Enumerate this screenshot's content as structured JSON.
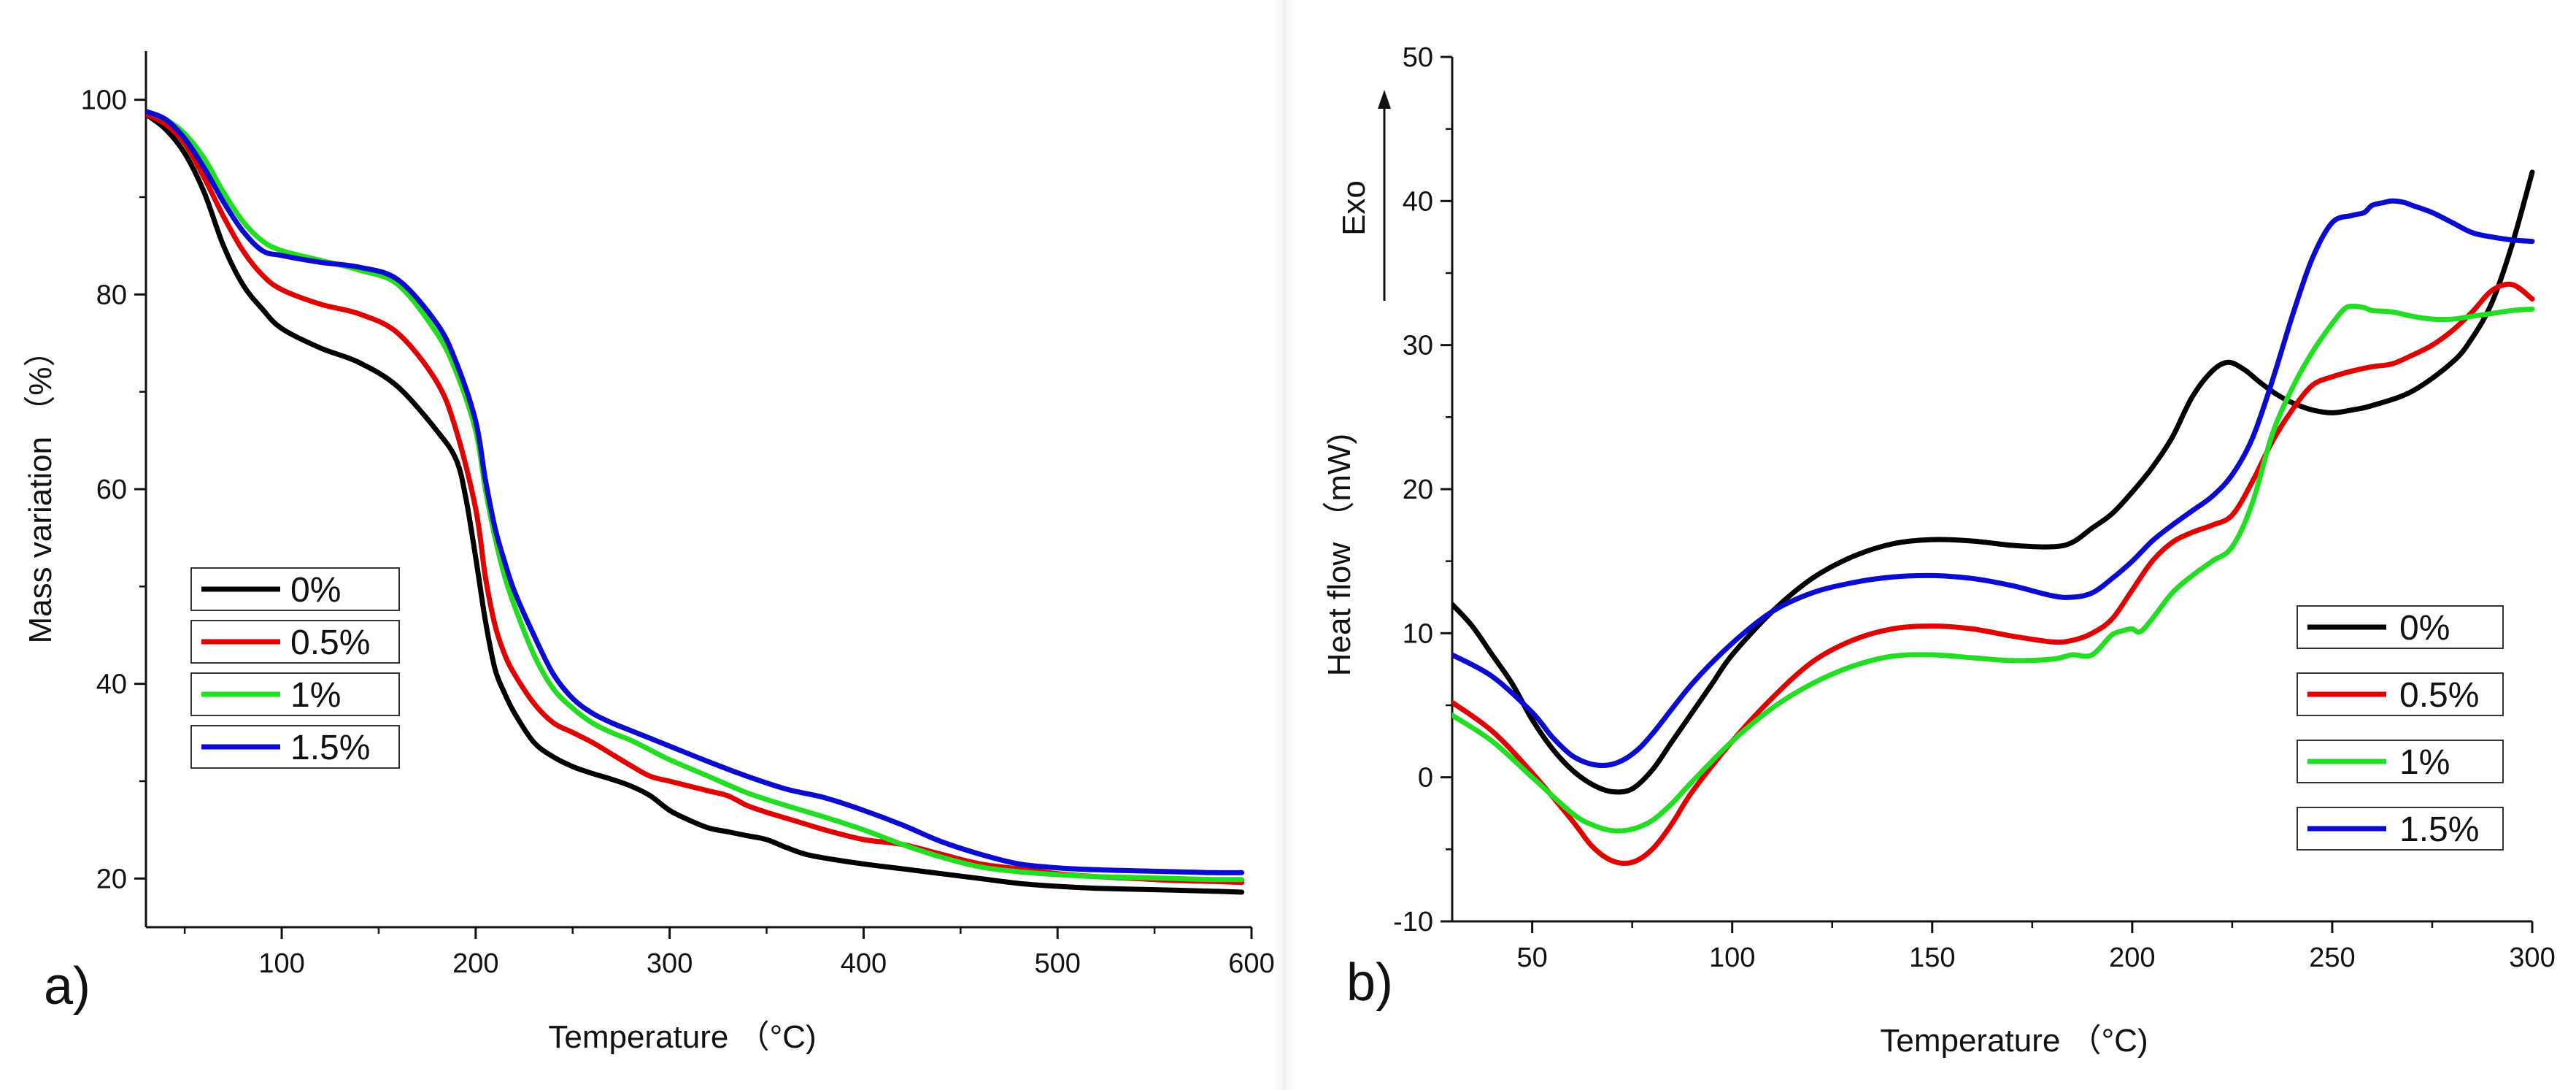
{
  "figure": {
    "panel_a_label": "a)",
    "panel_b_label": "b)",
    "colors": {
      "s0": "#000000",
      "s05": "#e00000",
      "s1": "#22dd22",
      "s15": "#0a0ad0"
    }
  },
  "chart_data": [
    {
      "type": "line",
      "id": "a",
      "title": "",
      "xlabel": "Temperature （°C)",
      "ylabel": "Mass variation （%）",
      "xlim": [
        30,
        600
      ],
      "ylim": [
        15,
        105
      ],
      "xticks": [
        100,
        200,
        300,
        400,
        500,
        600
      ],
      "yticks": [
        20,
        40,
        60,
        80,
        100
      ],
      "grid": false,
      "legend_position": "middle-left",
      "series": [
        {
          "name": "0%",
          "color": "#000000",
          "x": [
            30,
            40,
            50,
            60,
            70,
            80,
            90,
            100,
            120,
            140,
            160,
            180,
            190,
            195,
            200,
            205,
            210,
            215,
            220,
            230,
            240,
            250,
            260,
            270,
            280,
            290,
            300,
            310,
            320,
            330,
            340,
            350,
            360,
            370,
            380,
            400,
            420,
            440,
            460,
            480,
            500,
            520,
            540,
            560,
            580,
            595
          ],
          "y": [
            98.5,
            97,
            94.5,
            90.5,
            85,
            81,
            78.5,
            76.5,
            74.5,
            73,
            70.5,
            66,
            63,
            59,
            53,
            46.5,
            41.5,
            39,
            37,
            34,
            32.5,
            31.5,
            30.8,
            30.2,
            29.5,
            28.5,
            27,
            26,
            25.2,
            24.8,
            24.4,
            24,
            23.2,
            22.5,
            22.1,
            21.5,
            21,
            20.5,
            20,
            19.5,
            19.2,
            19,
            18.9,
            18.8,
            18.7,
            18.6
          ]
        },
        {
          "name": "0.5%",
          "color": "#e00000",
          "x": [
            30,
            40,
            50,
            60,
            70,
            80,
            90,
            100,
            120,
            140,
            160,
            180,
            190,
            200,
            205,
            210,
            215,
            220,
            230,
            240,
            250,
            260,
            270,
            280,
            290,
            300,
            310,
            320,
            330,
            340,
            350,
            360,
            370,
            380,
            400,
            420,
            440,
            460,
            480,
            500,
            520,
            540,
            560,
            580,
            595
          ],
          "y": [
            98.5,
            97.5,
            95.5,
            92,
            88,
            84.5,
            82,
            80.5,
            79,
            78,
            76,
            71,
            66,
            58,
            51,
            46,
            43,
            41,
            38,
            36,
            35,
            34,
            32.8,
            31.6,
            30.5,
            30,
            29.5,
            29,
            28.5,
            27.5,
            26.8,
            26.2,
            25.6,
            25,
            24,
            23.5,
            22.5,
            21.5,
            21,
            20.5,
            20.2,
            20,
            19.8,
            19.7,
            19.6
          ]
        },
        {
          "name": "1%",
          "color": "#22dd22",
          "x": [
            30,
            40,
            50,
            60,
            70,
            80,
            90,
            100,
            120,
            140,
            160,
            180,
            190,
            200,
            205,
            210,
            215,
            220,
            230,
            240,
            250,
            260,
            270,
            280,
            290,
            300,
            320,
            340,
            360,
            380,
            400,
            420,
            440,
            460,
            480,
            500,
            520,
            540,
            560,
            580,
            595
          ],
          "y": [
            98.8,
            98,
            96.5,
            94,
            90.5,
            87.5,
            85.5,
            84.5,
            83.5,
            82.5,
            81,
            76,
            72,
            66,
            60,
            55,
            51,
            48,
            43,
            39.5,
            37.5,
            36,
            35,
            34.2,
            33.2,
            32.2,
            30.5,
            28.8,
            27.5,
            26.3,
            25,
            23.5,
            22.2,
            21.2,
            20.7,
            20.4,
            20.2,
            20.1,
            20,
            19.9,
            19.9
          ]
        },
        {
          "name": "1.5%",
          "color": "#0a0ad0",
          "x": [
            30,
            40,
            50,
            60,
            70,
            80,
            90,
            100,
            120,
            140,
            160,
            180,
            190,
            200,
            205,
            210,
            215,
            220,
            230,
            240,
            250,
            260,
            270,
            280,
            290,
            300,
            320,
            340,
            360,
            380,
            400,
            420,
            440,
            460,
            480,
            500,
            520,
            540,
            560,
            580,
            595
          ],
          "y": [
            98.8,
            98,
            96,
            93,
            89.5,
            86.5,
            84.5,
            84,
            83.3,
            82.8,
            81.5,
            77,
            73,
            67,
            61,
            56,
            52.5,
            49.5,
            45,
            41,
            38.5,
            37,
            36,
            35.2,
            34.4,
            33.6,
            32,
            30.5,
            29.2,
            28.3,
            27,
            25.5,
            23.8,
            22.5,
            21.5,
            21.1,
            20.9,
            20.8,
            20.7,
            20.6,
            20.6
          ]
        }
      ]
    },
    {
      "type": "line",
      "id": "b",
      "title": "",
      "xlabel": "Temperature （°C)",
      "ylabel": "Heat flow （mW)",
      "exo_label": "Exo",
      "xlim": [
        30,
        300
      ],
      "ylim": [
        -10,
        50
      ],
      "xticks": [
        50,
        100,
        150,
        200,
        250,
        300
      ],
      "yticks": [
        -10,
        0,
        10,
        20,
        30,
        40,
        50
      ],
      "grid": false,
      "legend_position": "right",
      "series": [
        {
          "name": "0%",
          "color": "#000000",
          "x": [
            30,
            35,
            40,
            45,
            50,
            55,
            60,
            65,
            70,
            75,
            80,
            85,
            90,
            95,
            100,
            110,
            120,
            130,
            140,
            150,
            160,
            170,
            180,
            185,
            190,
            195,
            200,
            205,
            210,
            215,
            220,
            224,
            228,
            232,
            236,
            240,
            245,
            250,
            255,
            260,
            270,
            280,
            285,
            290,
            295,
            300
          ],
          "y": [
            12,
            10.5,
            8.5,
            6.5,
            4,
            2,
            0.5,
            -0.5,
            -1,
            -0.8,
            0.5,
            2.5,
            4.5,
            6.5,
            8.5,
            11.5,
            13.8,
            15.3,
            16.2,
            16.5,
            16.4,
            16.1,
            16,
            16.3,
            17.3,
            18.3,
            19.8,
            21.5,
            23.6,
            26.4,
            28.2,
            28.8,
            28.3,
            27.4,
            26.6,
            26,
            25.5,
            25.3,
            25.5,
            25.8,
            26.8,
            28.8,
            30.5,
            33,
            37,
            42
          ]
        },
        {
          "name": "0.5%",
          "color": "#e00000",
          "x": [
            30,
            40,
            50,
            60,
            65,
            70,
            75,
            80,
            85,
            90,
            100,
            110,
            120,
            130,
            140,
            150,
            160,
            170,
            180,
            185,
            190,
            195,
            200,
            205,
            210,
            215,
            220,
            225,
            230,
            235,
            240,
            245,
            250,
            255,
            260,
            265,
            270,
            275,
            280,
            285,
            290,
            295,
            300
          ],
          "y": [
            5.2,
            3.2,
            0.3,
            -3,
            -4.8,
            -5.8,
            -5.9,
            -5,
            -3.2,
            -1,
            2.5,
            5.5,
            8,
            9.5,
            10.3,
            10.5,
            10.3,
            9.8,
            9.4,
            9.5,
            10,
            11,
            13,
            15,
            16.3,
            17,
            17.5,
            18.2,
            20.5,
            23.3,
            25.5,
            27.2,
            27.8,
            28.2,
            28.5,
            28.7,
            29.3,
            30,
            31,
            32.3,
            33.8,
            34.2,
            33.2
          ]
        },
        {
          "name": "1%",
          "color": "#22dd22",
          "x": [
            30,
            40,
            50,
            60,
            65,
            70,
            75,
            80,
            85,
            90,
            100,
            110,
            120,
            130,
            140,
            150,
            160,
            170,
            180,
            185,
            188,
            190,
            192,
            195,
            198,
            200,
            202,
            205,
            210,
            215,
            220,
            225,
            230,
            235,
            240,
            245,
            250,
            253,
            255,
            258,
            260,
            265,
            270,
            275,
            280,
            285,
            290,
            295,
            300
          ],
          "y": [
            4.3,
            2.5,
            0,
            -2.5,
            -3.3,
            -3.7,
            -3.6,
            -3,
            -1.8,
            -0.3,
            2.5,
            4.8,
            6.5,
            7.7,
            8.4,
            8.5,
            8.3,
            8.1,
            8.2,
            8.5,
            8.4,
            8.5,
            9,
            9.9,
            10.2,
            10.3,
            10.1,
            11,
            12.8,
            14,
            15,
            16,
            19,
            23.8,
            27,
            29.5,
            31.5,
            32.5,
            32.7,
            32.6,
            32.4,
            32.3,
            32,
            31.8,
            31.8,
            32,
            32.2,
            32.4,
            32.5
          ]
        },
        {
          "name": "1.5%",
          "color": "#0a0ad0",
          "x": [
            30,
            40,
            50,
            55,
            60,
            65,
            70,
            75,
            80,
            90,
            100,
            110,
            120,
            130,
            140,
            150,
            160,
            170,
            180,
            185,
            190,
            195,
            200,
            205,
            210,
            215,
            220,
            225,
            230,
            235,
            240,
            245,
            250,
            255,
            258,
            260,
            263,
            265,
            268,
            270,
            275,
            280,
            285,
            290,
            295,
            300
          ],
          "y": [
            8.5,
            7,
            4.5,
            2.8,
            1.5,
            0.9,
            0.9,
            1.6,
            3,
            6.5,
            9.3,
            11.5,
            12.8,
            13.5,
            13.9,
            14,
            13.8,
            13.3,
            12.6,
            12.5,
            12.8,
            13.8,
            15,
            16.4,
            17.5,
            18.5,
            19.5,
            21,
            23.5,
            27.5,
            32,
            36,
            38.5,
            39,
            39.2,
            39.7,
            39.9,
            40,
            39.9,
            39.7,
            39.2,
            38.5,
            37.8,
            37.5,
            37.3,
            37.2
          ]
        }
      ]
    }
  ]
}
